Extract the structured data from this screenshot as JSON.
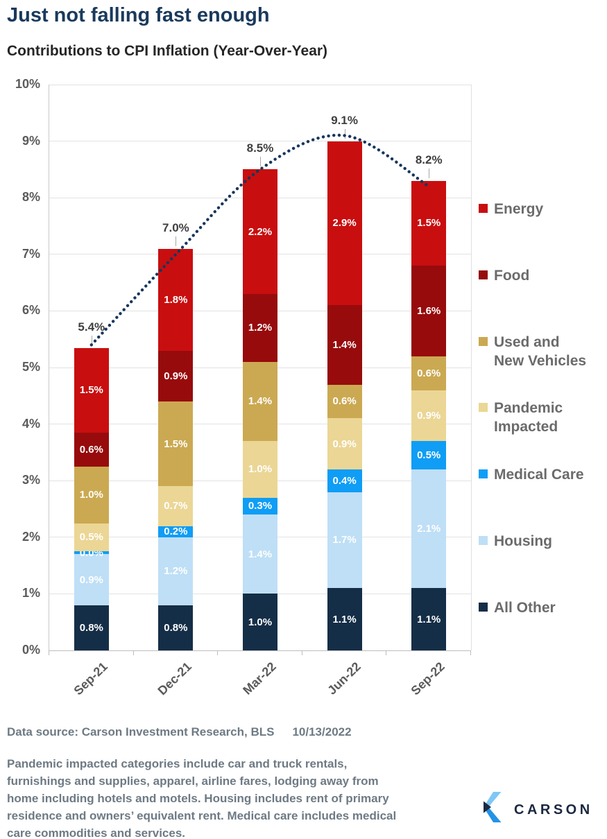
{
  "page": {
    "title": "Just not falling fast enough",
    "subtitle": "Contributions to CPI Inflation (Year-Over-Year)",
    "title_color": "#1A3A5C"
  },
  "chart_data": {
    "type": "bar",
    "subtype": "stacked-columns-with-dotted-total-line",
    "title": "Just not falling fast enough",
    "subtitle": "Contributions to CPI Inflation (Year-Over-Year)",
    "categories": [
      "Sep-21",
      "Dec-21",
      "Mar-22",
      "Jun-22",
      "Sep-22"
    ],
    "series": [
      {
        "name": "All Other",
        "color": "#152E47",
        "values": [
          0.8,
          0.8,
          1.0,
          1.1,
          1.1
        ]
      },
      {
        "name": "Housing",
        "color": "#BEDFF6",
        "values": [
          0.9,
          1.2,
          1.4,
          1.7,
          2.1
        ]
      },
      {
        "name": "Medical Care",
        "color": "#0F9DF5",
        "values": [
          0.0,
          0.2,
          0.3,
          0.4,
          0.5
        ]
      },
      {
        "name": "Pandemic Impacted",
        "color": "#EBD695",
        "values": [
          0.5,
          0.7,
          1.0,
          0.9,
          0.9
        ]
      },
      {
        "name": "Used and New Vehicles",
        "color": "#CBA952",
        "values": [
          1.0,
          1.5,
          1.4,
          0.6,
          0.6
        ]
      },
      {
        "name": "Food",
        "color": "#970B0C",
        "values": [
          0.6,
          0.9,
          1.2,
          1.4,
          1.6
        ]
      },
      {
        "name": "Energy",
        "color": "#C90E0F",
        "values": [
          1.5,
          1.8,
          2.2,
          2.9,
          1.5
        ]
      }
    ],
    "totals": [
      5.4,
      7.0,
      8.5,
      9.1,
      8.2
    ],
    "total_labels": [
      "5.4%",
      "7.0%",
      "8.5%",
      "9.1%",
      "8.2%"
    ],
    "trend_line": {
      "style": "dotted",
      "color": "#17365C"
    },
    "y_axis": {
      "min": 0,
      "max": 10,
      "step": 1,
      "tick_labels": [
        "0%",
        "1%",
        "2%",
        "3%",
        "4%",
        "5%",
        "6%",
        "7%",
        "8%",
        "9%",
        "10%"
      ]
    },
    "grid": true,
    "legend_position": "right",
    "legend": [
      {
        "name": "Energy",
        "lines": [
          "Energy"
        ]
      },
      {
        "name": "Food",
        "lines": [
          "Food"
        ]
      },
      {
        "name": "Used and New Vehicles",
        "lines": [
          "Used and",
          "New Vehicles"
        ]
      },
      {
        "name": "Pandemic Impacted",
        "lines": [
          "Pandemic",
          "Impacted"
        ]
      },
      {
        "name": "Medical Care",
        "lines": [
          "Medical Care"
        ]
      },
      {
        "name": "Housing",
        "lines": [
          "Housing"
        ]
      },
      {
        "name": "All Other",
        "lines": [
          "All Other"
        ]
      }
    ]
  },
  "footer": {
    "source_label": "Data source: Carson Investment Research, BLS",
    "source_date": "10/13/2022",
    "note": "Pandemic impacted categories include car and truck rentals, furnishings and supplies, apparel, airline fares, lodging away from home including hotels and motels. Housing includes rent of primary residence and owners’ equivalent rent. Medical care includes medical care commodities and services."
  },
  "logo": {
    "wordmark": "CARSON",
    "icon": "carson-chevron-icon",
    "colors": {
      "light_blue": "#7EC7F6",
      "blue": "#2293E6",
      "navy": "#1B2A41"
    }
  }
}
